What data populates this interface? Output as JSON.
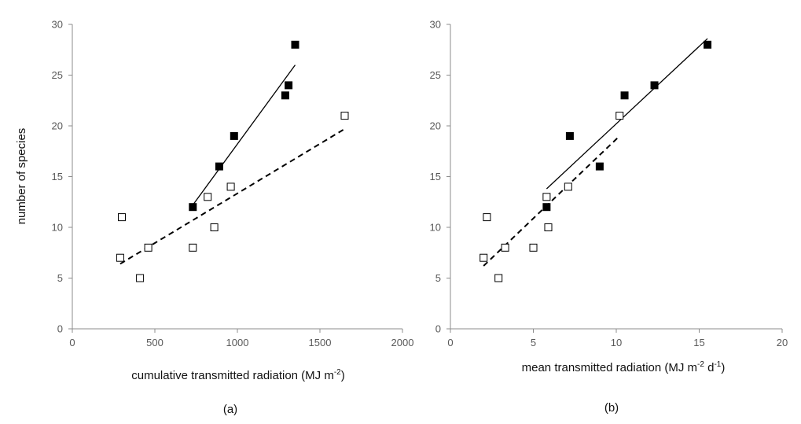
{
  "chart_data": [
    {
      "type": "scatter",
      "panel_label": "(a)",
      "xlabel": "cumulative transmitted radiation (MJ m",
      "xlabel_sup": "-2",
      "xlabel_suffix": ")",
      "ylabel": "number of species",
      "xlim": [
        0,
        2000
      ],
      "ylim": [
        0,
        30
      ],
      "xticks": [
        0,
        500,
        1000,
        1500,
        2000
      ],
      "yticks": [
        0,
        5,
        10,
        15,
        20,
        25,
        30
      ],
      "grid": false,
      "series": [
        {
          "marker": "open-square",
          "line": "dashed",
          "points": [
            [
              290,
              7
            ],
            [
              300,
              11
            ],
            [
              410,
              5
            ],
            [
              460,
              8
            ],
            [
              730,
              8
            ],
            [
              820,
              13
            ],
            [
              860,
              10
            ],
            [
              960,
              14
            ],
            [
              1650,
              21
            ]
          ],
          "trend": [
            [
              290,
              6.4
            ],
            [
              1650,
              19.7
            ]
          ]
        },
        {
          "marker": "filled-square",
          "line": "solid",
          "points": [
            [
              730,
              12
            ],
            [
              890,
              16
            ],
            [
              980,
              19
            ],
            [
              1290,
              23
            ],
            [
              1310,
              24
            ],
            [
              1350,
              28
            ]
          ],
          "trend": [
            [
              730,
              12.2
            ],
            [
              1350,
              26
            ]
          ]
        }
      ]
    },
    {
      "type": "scatter",
      "panel_label": "(b)",
      "xlabel": "mean transmitted radiation (MJ m",
      "xlabel_sup": "-2",
      "xlabel_mid": " d",
      "xlabel_sup2": "-1",
      "xlabel_suffix": ")",
      "ylabel": "",
      "xlim": [
        0,
        20
      ],
      "ylim": [
        0,
        30
      ],
      "xticks": [
        0,
        5,
        10,
        15,
        20
      ],
      "yticks": [
        0,
        5,
        10,
        15,
        20,
        25,
        30
      ],
      "grid": false,
      "series": [
        {
          "marker": "open-square",
          "line": "dashed",
          "points": [
            [
              2.0,
              7
            ],
            [
              2.2,
              11
            ],
            [
              2.9,
              5
            ],
            [
              3.3,
              8
            ],
            [
              5.0,
              8
            ],
            [
              5.8,
              13
            ],
            [
              5.9,
              10
            ],
            [
              7.1,
              14
            ],
            [
              10.2,
              21
            ]
          ],
          "trend": [
            [
              2.0,
              6.2
            ],
            [
              10.2,
              19
            ]
          ]
        },
        {
          "marker": "filled-square",
          "line": "solid",
          "points": [
            [
              5.8,
              12
            ],
            [
              7.2,
              19
            ],
            [
              9.0,
              16
            ],
            [
              10.5,
              23
            ],
            [
              12.3,
              24
            ],
            [
              15.5,
              28
            ]
          ],
          "trend": [
            [
              5.8,
              13.8
            ],
            [
              15.5,
              28.6
            ]
          ]
        }
      ]
    }
  ]
}
